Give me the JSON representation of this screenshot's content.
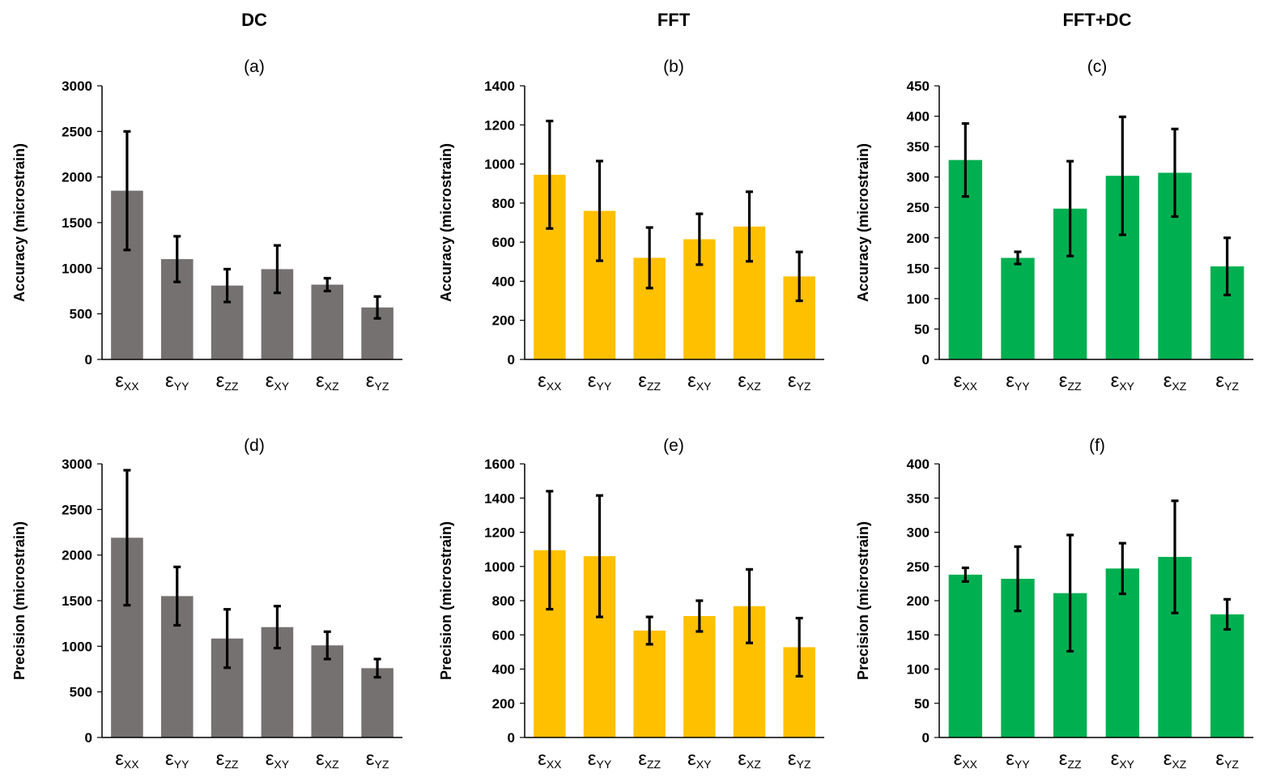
{
  "figure": {
    "column_titles": [
      "DC",
      "FFT",
      "FFT+DC"
    ]
  },
  "colors": {
    "dc": "#767171",
    "fft": "#FFC000",
    "fftdc": "#00B050",
    "axis": "#000000",
    "error_bar": "#000000"
  },
  "chart_data": [
    {
      "type": "bar",
      "panel": "(a)",
      "method": "DC",
      "title": "(a)",
      "ylabel": "Accuracy (microstrain)",
      "categories": [
        "εXX",
        "εYY",
        "εZZ",
        "εXY",
        "εXZ",
        "εYZ"
      ],
      "category_symbol": "ε",
      "category_subscripts": [
        "XX",
        "YY",
        "ZZ",
        "XY",
        "XZ",
        "YZ"
      ],
      "ylim": [
        0,
        3000
      ],
      "yticks": [
        0,
        500,
        1000,
        1500,
        2000,
        2500,
        3000
      ],
      "values": [
        1850,
        1100,
        810,
        990,
        820,
        570
      ],
      "errors": [
        650,
        250,
        180,
        260,
        70,
        120
      ]
    },
    {
      "type": "bar",
      "panel": "(b)",
      "method": "FFT",
      "title": "(b)",
      "ylabel": "Accuracy (microstrain)",
      "categories": [
        "εXX",
        "εYY",
        "εZZ",
        "εXY",
        "εXZ",
        "εYZ"
      ],
      "category_symbol": "ε",
      "category_subscripts": [
        "XX",
        "YY",
        "ZZ",
        "XY",
        "XZ",
        "YZ"
      ],
      "ylim": [
        0,
        1400
      ],
      "yticks": [
        0,
        200,
        400,
        600,
        800,
        1000,
        1200,
        1400
      ],
      "values": [
        945,
        760,
        520,
        615,
        680,
        425
      ],
      "errors": [
        275,
        255,
        155,
        130,
        178,
        125
      ]
    },
    {
      "type": "bar",
      "panel": "(c)",
      "method": "FFT+DC",
      "title": "(c)",
      "ylabel": "Accuracy (microstrain)",
      "categories": [
        "εXX",
        "εYY",
        "εZZ",
        "εXY",
        "εXZ",
        "εYZ"
      ],
      "category_symbol": "ε",
      "category_subscripts": [
        "XX",
        "YY",
        "ZZ",
        "XY",
        "XZ",
        "YZ"
      ],
      "ylim": [
        0,
        450
      ],
      "yticks": [
        0,
        50,
        100,
        150,
        200,
        250,
        300,
        350,
        400,
        450
      ],
      "values": [
        328,
        167,
        248,
        302,
        307,
        153
      ],
      "errors": [
        60,
        10,
        78,
        97,
        72,
        47
      ]
    },
    {
      "type": "bar",
      "panel": "(d)",
      "method": "DC",
      "title": "(d)",
      "ylabel": "Precision (microstrain)",
      "categories": [
        "εXX",
        "εYY",
        "εZZ",
        "εXY",
        "εXZ",
        "εYZ"
      ],
      "category_symbol": "ε",
      "category_subscripts": [
        "XX",
        "YY",
        "ZZ",
        "XY",
        "XZ",
        "YZ"
      ],
      "ylim": [
        0,
        3000
      ],
      "yticks": [
        0,
        500,
        1000,
        1500,
        2000,
        2500,
        3000
      ],
      "values": [
        2190,
        1550,
        1085,
        1210,
        1010,
        760
      ],
      "errors": [
        740,
        320,
        320,
        230,
        150,
        100
      ]
    },
    {
      "type": "bar",
      "panel": "(e)",
      "method": "FFT",
      "title": "(e)",
      "ylabel": "Precision (microstrain)",
      "categories": [
        "εXX",
        "εYY",
        "εZZ",
        "εXY",
        "εXZ",
        "εYZ"
      ],
      "category_symbol": "ε",
      "category_subscripts": [
        "XX",
        "YY",
        "ZZ",
        "XY",
        "XZ",
        "YZ"
      ],
      "ylim": [
        0,
        1600
      ],
      "yticks": [
        0,
        200,
        400,
        600,
        800,
        1000,
        1200,
        1400,
        1600
      ],
      "values": [
        1095,
        1060,
        625,
        710,
        768,
        528
      ],
      "errors": [
        345,
        355,
        80,
        90,
        215,
        170
      ]
    },
    {
      "type": "bar",
      "panel": "(f)",
      "method": "FFT+DC",
      "title": "(f)",
      "ylabel": "Precision (microstrain)",
      "categories": [
        "εXX",
        "εYY",
        "εZZ",
        "εXY",
        "εXZ",
        "εYZ"
      ],
      "category_symbol": "ε",
      "category_subscripts": [
        "XX",
        "YY",
        "ZZ",
        "XY",
        "XZ",
        "YZ"
      ],
      "ylim": [
        0,
        400
      ],
      "yticks": [
        0,
        50,
        100,
        150,
        200,
        250,
        300,
        350,
        400
      ],
      "values": [
        238,
        232,
        211,
        247,
        264,
        180
      ],
      "errors": [
        10,
        47,
        85,
        37,
        82,
        22
      ]
    }
  ]
}
